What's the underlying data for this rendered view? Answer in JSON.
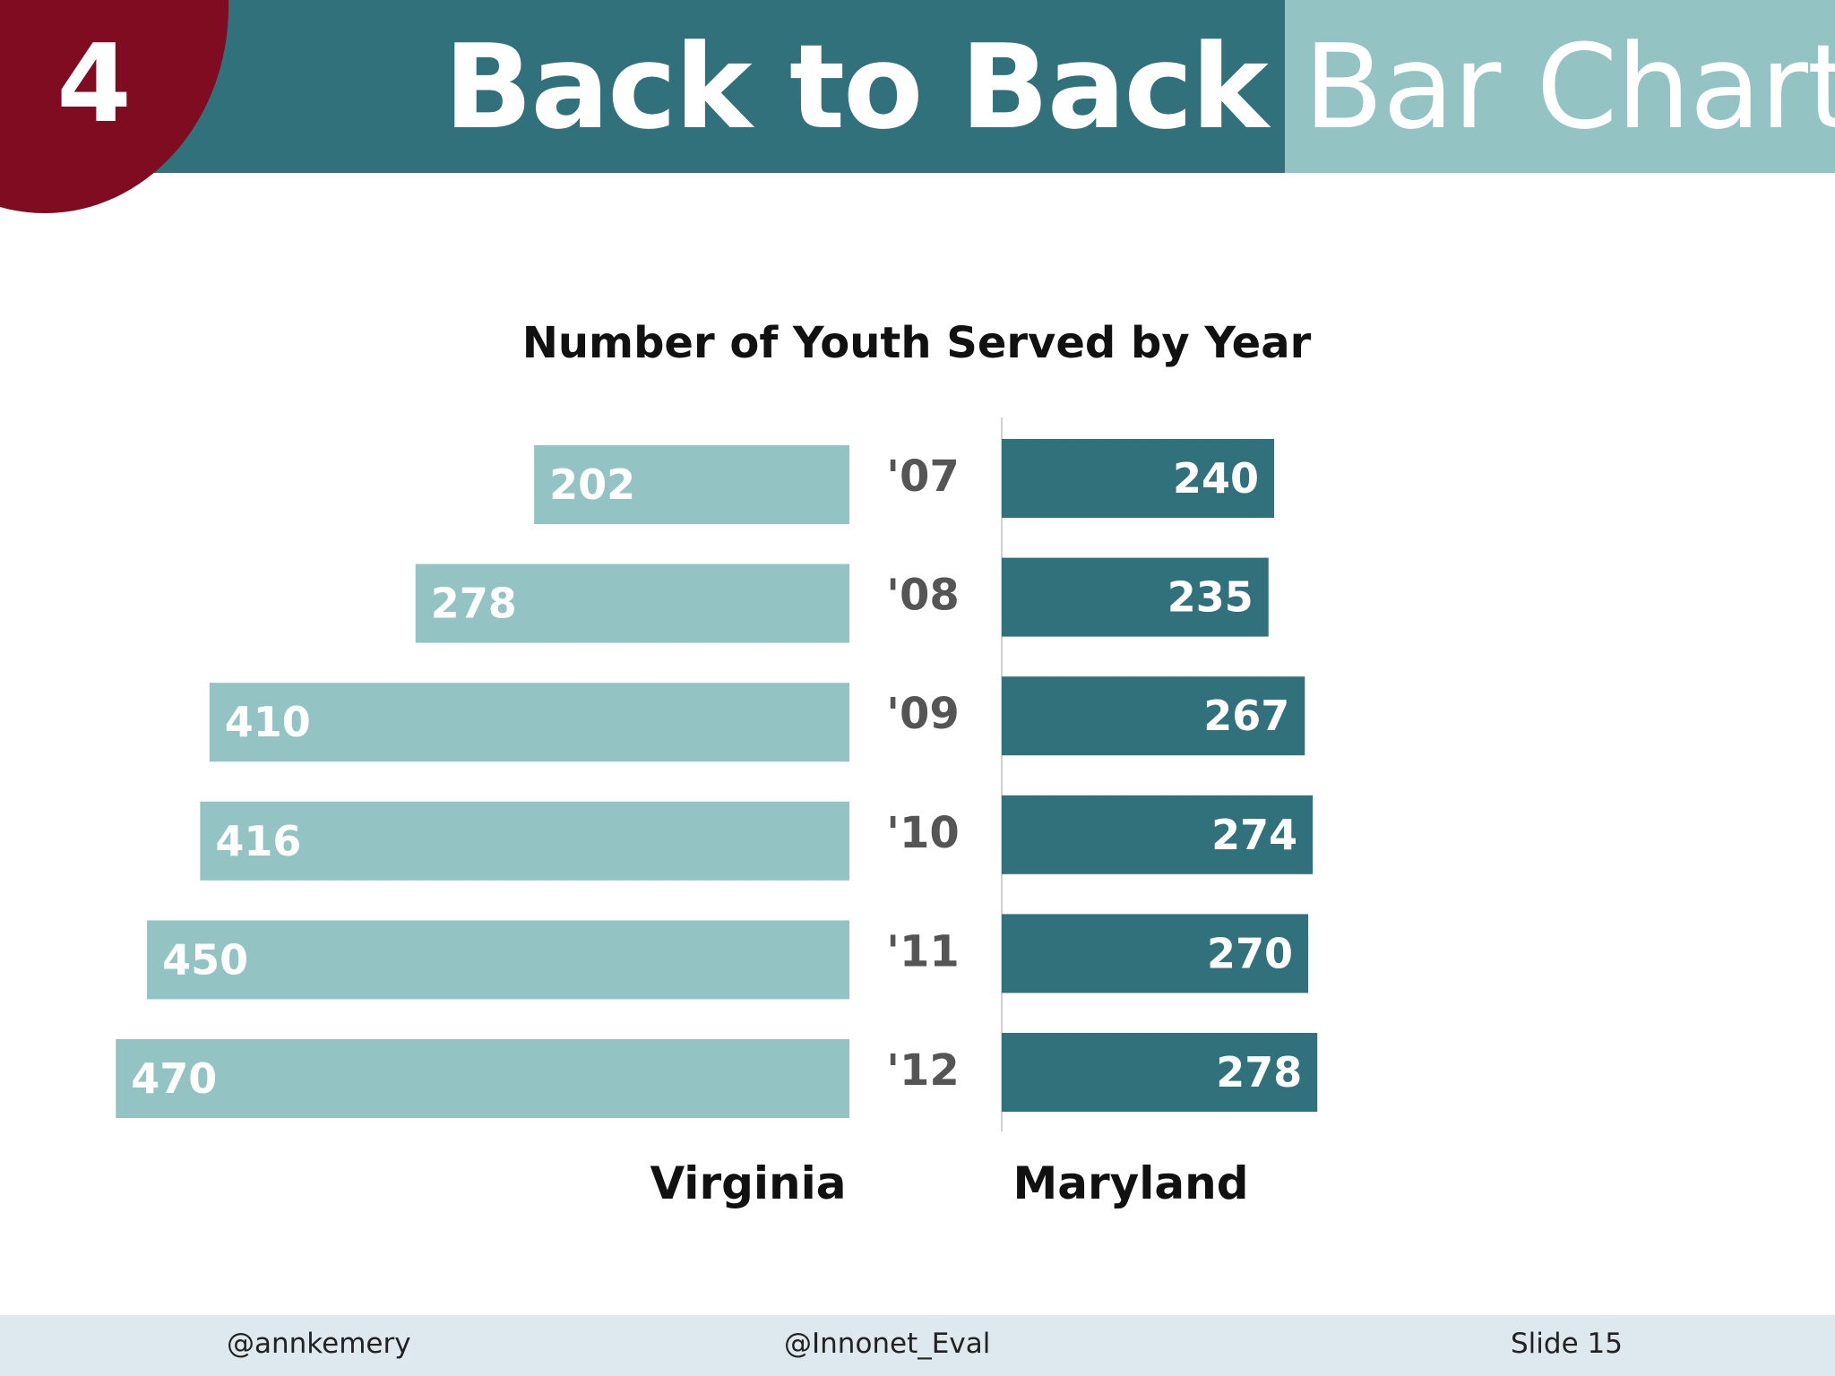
{
  "slide_number": "4",
  "title": {
    "bold": "Back to Back",
    "light": "Bar Chart"
  },
  "colors": {
    "header_dark": "#31717c",
    "header_light": "#94c3c4",
    "accent_circle": "#800c22",
    "virginia_bar": "#94c3c4",
    "maryland_bar": "#31717c"
  },
  "footer": {
    "left": "@annkemery",
    "center": "@Innonet_Eval",
    "right": "Slide 15"
  },
  "chart_data": {
    "type": "bar",
    "orientation": "horizontal-back-to-back",
    "title": "Number of Youth Served by Year",
    "categories": [
      "'07",
      "'08",
      "'09",
      "'10",
      "'11",
      "'12"
    ],
    "series": [
      {
        "name": "Virginia",
        "values": [
          202,
          278,
          410,
          416,
          450,
          470
        ]
      },
      {
        "name": "Maryland",
        "values": [
          240,
          235,
          267,
          274,
          270,
          278
        ]
      }
    ]
  }
}
